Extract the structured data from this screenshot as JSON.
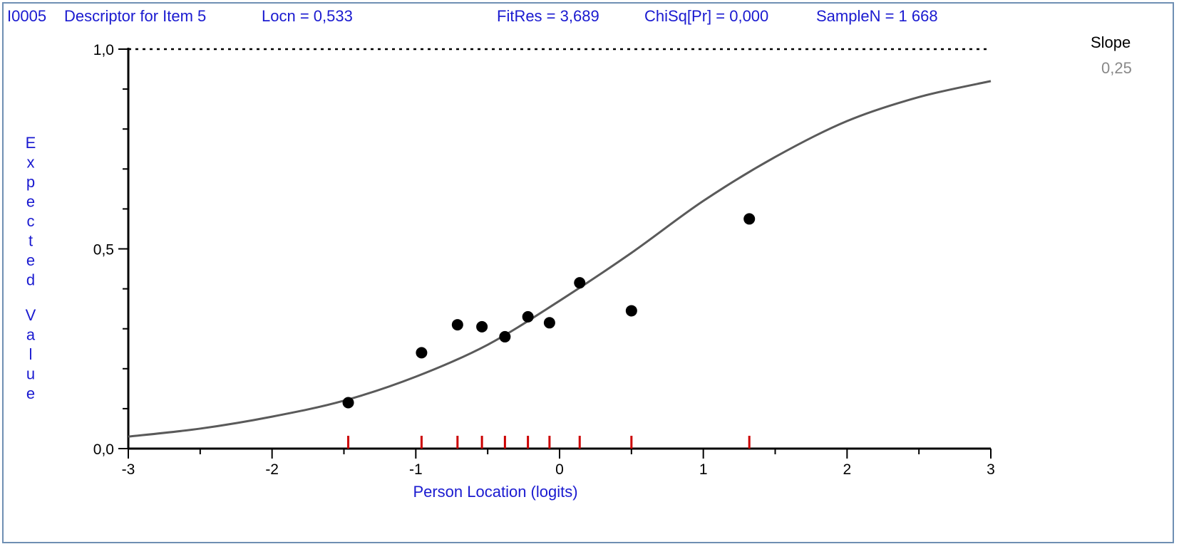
{
  "header": {
    "item_id": "I0005",
    "item_descriptor": "Descriptor for Item 5",
    "locn": "Locn = 0,533",
    "fitres": "FitRes = 3,689",
    "chisq": "ChiSq[Pr] = 0,000",
    "samplen": "SampleN = 1 668"
  },
  "slope": {
    "label": "Slope",
    "value": "0,25"
  },
  "colors": {
    "header_text": "#1a1ad0",
    "curve": "#5a5a5a",
    "points": "#000000",
    "rug_ticks": "#cc0000",
    "frame_border": "#6f8fb3"
  },
  "chart_data": {
    "type": "scatter",
    "title": "",
    "xlabel": "Person Location (logits)",
    "ylabel": "Expected Value",
    "xlim": [
      -3,
      3
    ],
    "ylim": [
      0,
      1
    ],
    "x_ticks": [
      -3,
      -2,
      -1,
      0,
      1,
      2,
      3
    ],
    "x_tick_labels": [
      "-3",
      "-2",
      "-1",
      "0",
      "1",
      "2",
      "3"
    ],
    "y_ticks": [
      0,
      0.5,
      1
    ],
    "y_tick_labels": [
      "0,0",
      "0,5",
      "1,0"
    ],
    "reference_line": {
      "y": 1.0,
      "style": "dotted"
    },
    "series": [
      {
        "kind": "curve",
        "x": [
          -3.0,
          -2.5,
          -2.0,
          -1.5,
          -1.0,
          -0.5,
          0.0,
          0.5,
          1.0,
          1.5,
          2.0,
          2.5,
          3.0
        ],
        "y": [
          0.03,
          0.05,
          0.08,
          0.12,
          0.18,
          0.26,
          0.37,
          0.49,
          0.62,
          0.73,
          0.82,
          0.88,
          0.92
        ]
      },
      {
        "kind": "observed",
        "x": [
          -1.47,
          -0.96,
          -0.71,
          -0.54,
          -0.38,
          -0.22,
          -0.07,
          0.14,
          0.5,
          1.32
        ],
        "y": [
          0.115,
          0.24,
          0.31,
          0.305,
          0.28,
          0.33,
          0.315,
          0.415,
          0.345,
          0.575
        ]
      }
    ],
    "class_intervals_x": [
      -1.47,
      -0.96,
      -0.71,
      -0.54,
      -0.38,
      -0.22,
      -0.07,
      0.14,
      0.5,
      1.32
    ],
    "grid": false,
    "legend": "none"
  }
}
